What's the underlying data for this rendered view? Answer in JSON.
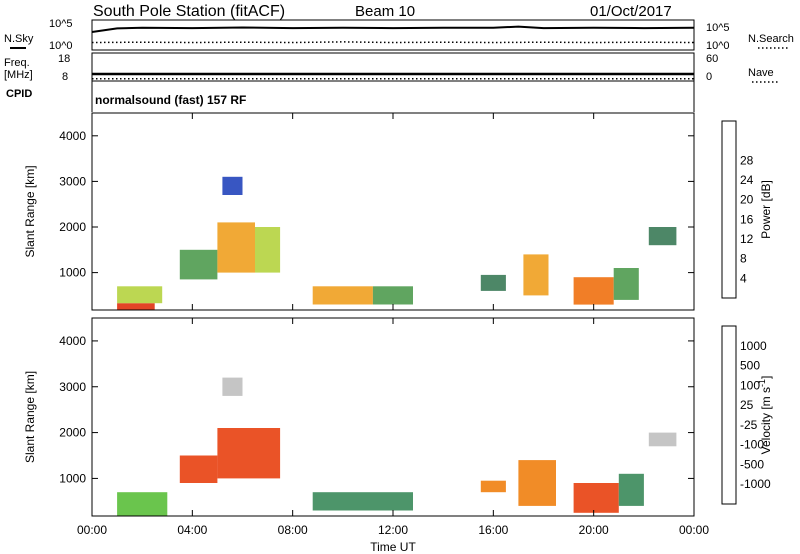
{
  "header": {
    "station_title": "South Pole Station (fitACF)",
    "beam": "Beam 10",
    "date": "01/Oct/2017"
  },
  "side_labels": {
    "nsky": "N.Sky",
    "nsearch": "N.Search",
    "freq": "Freq.",
    "mhz": "[MHz]",
    "nave": "Nave",
    "cpid": "CPID"
  },
  "cpid_value": "normalsound (fast) 157 RF",
  "chart_data": [
    {
      "type": "line",
      "panel": "noise",
      "left_ticks": [
        "10^5",
        "10^0"
      ],
      "right_ticks": [
        "10^5",
        "10^0"
      ],
      "series": [
        {
          "name": "N.Sky",
          "x": [
            0,
            1,
            2,
            4,
            6,
            8,
            10,
            12,
            14,
            16,
            17,
            18,
            20,
            22,
            24
          ],
          "y": [
            0.6,
            0.72,
            0.74,
            0.73,
            0.75,
            0.73,
            0.74,
            0.73,
            0.74,
            0.74,
            0.78,
            0.73,
            0.74,
            0.73,
            0.74
          ]
        },
        {
          "name": "N.Search",
          "x": [
            0,
            2,
            4,
            6,
            8,
            10,
            12,
            14,
            16,
            18,
            20,
            22,
            24
          ],
          "y": [
            0.25,
            0.26,
            0.25,
            0.26,
            0.25,
            0.27,
            0.25,
            0.26,
            0.25,
            0.26,
            0.25,
            0.26,
            0.25
          ]
        }
      ]
    },
    {
      "type": "line",
      "panel": "frequency",
      "left_ticks": [
        "18",
        "8"
      ],
      "right_ticks": [
        "60",
        "0"
      ],
      "series": [
        {
          "name": "Freq.",
          "x": [
            0,
            24
          ],
          "y": [
            10.5,
            10.5
          ]
        },
        {
          "name": "Nave",
          "x": [
            0,
            24
          ],
          "y": [
            5,
            5
          ]
        }
      ]
    },
    {
      "type": "heatmap",
      "panel": "power",
      "xlabel": "",
      "ylabel": "Slant Range [km]",
      "xlim": [
        0,
        24
      ],
      "ylim": [
        180,
        4500
      ],
      "y_ticks": [
        "1000",
        "2000",
        "3000",
        "4000"
      ],
      "colorbar_label": "Power [dB]",
      "colorbar_ticks": [
        "4",
        "8",
        "12",
        "16",
        "20",
        "24",
        "28"
      ],
      "colors": [
        "#1a1aff",
        "#2244bb",
        "#3a7a56",
        "#4f9b4f",
        "#b5d33f",
        "#f0a020",
        "#f07010",
        "#e03010",
        "#e00000"
      ],
      "patches": [
        {
          "t": [
            1.0,
            2.5
          ],
          "r": [
            180,
            330
          ],
          "level": 7
        },
        {
          "t": [
            1.0,
            2.8
          ],
          "r": [
            330,
            700
          ],
          "level": 4
        },
        {
          "t": [
            3.5,
            5.0
          ],
          "r": [
            850,
            1500
          ],
          "level": 3
        },
        {
          "t": [
            5.0,
            6.5
          ],
          "r": [
            1000,
            2100
          ],
          "level": 5
        },
        {
          "t": [
            6.5,
            7.5
          ],
          "r": [
            1000,
            2000
          ],
          "level": 4
        },
        {
          "t": [
            5.2,
            6.0
          ],
          "r": [
            2700,
            3100
          ],
          "level": 1
        },
        {
          "t": [
            8.8,
            11.2
          ],
          "r": [
            300,
            700
          ],
          "level": 5
        },
        {
          "t": [
            11.2,
            12.8
          ],
          "r": [
            300,
            700
          ],
          "level": 3
        },
        {
          "t": [
            15.5,
            16.5
          ],
          "r": [
            600,
            950
          ],
          "level": 2
        },
        {
          "t": [
            17.2,
            18.2
          ],
          "r": [
            500,
            1400
          ],
          "level": 5
        },
        {
          "t": [
            19.2,
            20.8
          ],
          "r": [
            300,
            900
          ],
          "level": 6
        },
        {
          "t": [
            20.8,
            21.8
          ],
          "r": [
            400,
            1100
          ],
          "level": 3
        },
        {
          "t": [
            22.2,
            23.3
          ],
          "r": [
            1600,
            2000
          ],
          "level": 2
        }
      ]
    },
    {
      "type": "heatmap",
      "panel": "velocity",
      "xlabel": "Time UT",
      "ylabel": "Slant Range [km]",
      "xlim": [
        0,
        24
      ],
      "ylim": [
        180,
        4500
      ],
      "x_ticks": [
        "00:00",
        "04:00",
        "08:00",
        "12:00",
        "16:00",
        "20:00",
        "00:00"
      ],
      "y_ticks": [
        "1000",
        "2000",
        "3000",
        "4000"
      ],
      "colorbar_label": "Velocity [m s",
      "colorbar_unit_sup": "-1",
      "colorbar_unit_close": "]",
      "colorbar_ticks": [
        "1000",
        "500",
        "100",
        "25",
        "-25",
        "-100",
        "-500",
        "-1000"
      ],
      "colors": [
        "#1a3acc",
        "#2a6aa0",
        "#3a8a5a",
        "#5abf3a",
        "#bfbfbf",
        "#f0b020",
        "#f08010",
        "#e84010",
        "#e00000"
      ],
      "patches": [
        {
          "t": [
            1.0,
            3.0
          ],
          "r": [
            180,
            700
          ],
          "level": 3
        },
        {
          "t": [
            3.5,
            5.0
          ],
          "r": [
            900,
            1500
          ],
          "level": 7
        },
        {
          "t": [
            5.0,
            7.5
          ],
          "r": [
            1000,
            2100
          ],
          "level": 7
        },
        {
          "t": [
            5.2,
            6.0
          ],
          "r": [
            2800,
            3200
          ],
          "level": 4
        },
        {
          "t": [
            8.8,
            12.8
          ],
          "r": [
            300,
            700
          ],
          "level": 2
        },
        {
          "t": [
            15.5,
            16.5
          ],
          "r": [
            700,
            950
          ],
          "level": 6
        },
        {
          "t": [
            17.0,
            18.5
          ],
          "r": [
            400,
            1400
          ],
          "level": 6
        },
        {
          "t": [
            19.2,
            21.0
          ],
          "r": [
            250,
            900
          ],
          "level": 7
        },
        {
          "t": [
            21.0,
            22.0
          ],
          "r": [
            400,
            1100
          ],
          "level": 2
        },
        {
          "t": [
            22.2,
            23.3
          ],
          "r": [
            1700,
            2000
          ],
          "level": 4
        }
      ]
    }
  ]
}
